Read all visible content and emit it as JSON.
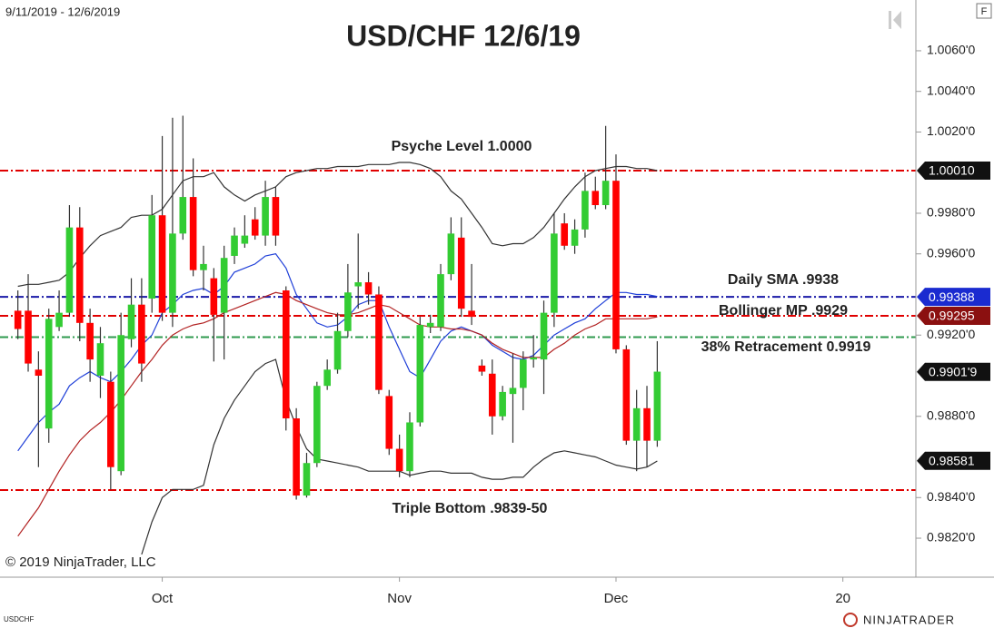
{
  "chart_data": {
    "type": "candlestick",
    "title": "USD/CHF 12/6/19",
    "date_range": "9/11/2019 - 12/6/2019",
    "symbol": "USDCHF",
    "copyright": "© 2019 NinjaTrader, LLC",
    "brand": "NINJATRADER",
    "button": "F",
    "up_color": "#33cc33",
    "down_color": "#ff0000",
    "categories": [
      null,
      null,
      null,
      null,
      null,
      null,
      null,
      null,
      null,
      null,
      null,
      null,
      null,
      null,
      "Oct",
      null,
      null,
      null,
      null,
      null,
      null,
      null,
      null,
      null,
      null,
      null,
      null,
      null,
      null,
      null,
      null,
      null,
      null,
      null,
      null,
      null,
      null,
      "Nov",
      null,
      null,
      null,
      null,
      null,
      null,
      null,
      null,
      null,
      null,
      null,
      null,
      null,
      null,
      null,
      null,
      null,
      null,
      null,
      null,
      "Dec",
      null,
      null,
      null,
      null,
      null,
      null,
      null,
      null,
      null,
      null,
      null,
      null,
      null,
      null,
      null,
      null,
      null,
      null,
      null,
      null,
      null,
      "20",
      null,
      null,
      null,
      null,
      null,
      null,
      null
    ],
    "open": [
      0.9932,
      0.9932,
      0.9903,
      0.9874,
      0.9924,
      0.9931,
      0.9973,
      0.9926,
      0.99,
      0.9897,
      0.9853,
      0.9918,
      0.9935,
      0.9938,
      0.9979,
      0.9931,
      0.997,
      0.9988,
      0.9952,
      0.9948,
      0.9931,
      0.9959,
      0.9965,
      0.9977,
      0.9969,
      0.9988,
      0.9942,
      0.9879,
      0.9841,
      0.9857,
      0.9895,
      0.9903,
      0.9922,
      0.9944,
      0.9946,
      0.994,
      0.989,
      0.9864,
      0.9853,
      0.9877,
      0.9924,
      0.9924,
      0.995,
      0.9968,
      0.9932,
      0.9905,
      0.9901,
      0.988,
      0.9891,
      0.9894,
      0.9908,
      0.9908,
      0.9931,
      0.9975,
      0.9964,
      0.9972,
      0.9991,
      0.9984,
      0.9996,
      0.9913,
      0.9868,
      0.9884,
      0.9868,
      null,
      null,
      null,
      null,
      null,
      null,
      null,
      null,
      null,
      null,
      null,
      null,
      null,
      null,
      null,
      null,
      null,
      null,
      null,
      null,
      null,
      null,
      null,
      null,
      null
    ],
    "high": [
      0.9942,
      0.995,
      0.9912,
      0.9933,
      0.9942,
      0.9984,
      0.9983,
      0.9933,
      0.9924,
      0.9902,
      0.9931,
      0.9948,
      0.9948,
      0.9989,
      1.0018,
      1.0027,
      1.0028,
      1.0007,
      0.9964,
      0.9953,
      0.9964,
      0.9973,
      0.9979,
      0.9983,
      0.9996,
      0.9993,
      0.9944,
      0.9884,
      0.9862,
      0.9897,
      0.9908,
      0.9931,
      0.9955,
      0.997,
      0.9951,
      0.9944,
      0.9893,
      0.9871,
      0.9882,
      0.9929,
      0.993,
      0.9955,
      0.9978,
      0.9978,
      0.9955,
      0.9908,
      0.9908,
      0.9895,
      0.9911,
      0.9912,
      0.992,
      0.9937,
      0.998,
      0.998,
      0.9977,
      1.0,
      0.9998,
      1.0023,
      1.0009,
      0.9915,
      0.9893,
      0.9895,
      0.9917,
      null,
      null,
      null,
      null,
      null,
      null,
      null,
      null,
      null,
      null,
      null,
      null,
      null,
      null,
      null,
      null,
      null,
      null,
      null,
      null,
      null,
      null,
      null,
      null,
      null
    ],
    "low": [
      0.9918,
      0.9902,
      0.9855,
      0.9867,
      0.9922,
      0.9929,
      0.9917,
      0.9897,
      0.9889,
      0.9844,
      0.9851,
      0.9914,
      0.9897,
      0.9931,
      0.9927,
      0.9924,
      0.9967,
      0.9949,
      0.9942,
      0.9907,
      0.9908,
      0.9955,
      0.9963,
      0.9967,
      0.9964,
      0.9964,
      0.9873,
      0.9839,
      0.984,
      0.9855,
      0.9893,
      0.9901,
      0.9919,
      0.9933,
      0.9935,
      0.9891,
      0.9861,
      0.985,
      0.985,
      0.9875,
      0.9921,
      0.9922,
      0.9947,
      0.9929,
      0.9925,
      0.99,
      0.9871,
      0.9878,
      0.9867,
      0.9883,
      0.9904,
      0.9891,
      0.9924,
      0.9962,
      0.996,
      0.9968,
      0.9982,
      0.9982,
      0.9911,
      0.9866,
      0.9853,
      0.9855,
      0.9865,
      null,
      null,
      null,
      null,
      null,
      null,
      null,
      null,
      null,
      null,
      null,
      null,
      null,
      null,
      null,
      null,
      null,
      null,
      null,
      null,
      null,
      null,
      null,
      null,
      null
    ],
    "close": [
      0.9923,
      0.9906,
      0.99,
      0.9928,
      0.9931,
      0.9973,
      0.9926,
      0.9908,
      0.9916,
      0.9855,
      0.992,
      0.9935,
      0.9906,
      0.9979,
      0.9931,
      0.997,
      0.9988,
      0.9952,
      0.9955,
      0.993,
      0.9958,
      0.9969,
      0.9969,
      0.9969,
      0.9988,
      0.9969,
      0.9879,
      0.9841,
      0.9857,
      0.9895,
      0.9903,
      0.9922,
      0.9941,
      0.9946,
      0.994,
      0.9893,
      0.9864,
      0.9853,
      0.9877,
      0.9925,
      0.9926,
      0.995,
      0.997,
      0.9933,
      0.9929,
      0.9902,
      0.988,
      0.9892,
      0.9894,
      0.9908,
      0.9909,
      0.9931,
      0.997,
      0.9964,
      0.9972,
      0.9991,
      0.9984,
      0.9996,
      0.9913,
      0.9868,
      0.9884,
      0.9868,
      0.9902,
      null,
      null,
      null,
      null,
      null,
      null,
      null,
      null,
      null,
      null,
      null,
      null,
      null,
      null,
      null,
      null,
      null,
      null,
      null,
      null,
      null,
      null,
      null,
      null,
      null
    ],
    "indicators": [
      {
        "color": "#333333",
        "values": [
          0.9944,
          0.9945,
          0.9945,
          0.9946,
          0.9947,
          0.9951,
          0.9958,
          0.9964,
          0.9969,
          0.9971,
          0.9973,
          0.9978,
          0.9979,
          0.9979,
          0.9982,
          0.9989,
          0.9996,
          0.9998,
          0.9998,
          1.0,
          0.9993,
          0.9989,
          0.9986,
          0.9989,
          0.9991,
          0.9993,
          0.9998,
          1.0,
          1.0001,
          1.0002,
          1.0002,
          1.0003,
          1.0003,
          1.0003,
          1.0004,
          1.0004,
          1.0004,
          1.0005,
          1.0005,
          1.0004,
          1.0002,
          0.9998,
          0.9991,
          0.9987,
          0.998,
          0.9973,
          0.9965,
          0.9964,
          0.9965,
          0.9965,
          0.9968,
          0.9973,
          0.998,
          0.9987,
          0.9993,
          0.9998,
          1.0001,
          1.0002,
          1.0003,
          1.0003,
          1.0002,
          1.0002,
          1.0001,
          null,
          null,
          null,
          null,
          null,
          null,
          null,
          null,
          null,
          null,
          null,
          null,
          null,
          null,
          null,
          null,
          null,
          null,
          null,
          null,
          null,
          null,
          null,
          null,
          null
        ]
      },
      {
        "color": "#333333",
        "values": [
          null,
          null,
          null,
          null,
          null,
          null,
          null,
          null,
          null,
          null,
          null,
          null,
          0.9812,
          0.9828,
          0.984,
          0.9844,
          0.9844,
          0.9844,
          0.9846,
          0.9866,
          0.9879,
          0.9888,
          0.9895,
          0.9902,
          0.9906,
          0.9908,
          0.9888,
          0.9875,
          0.9864,
          0.9859,
          0.9858,
          0.9857,
          0.9856,
          0.9855,
          0.9853,
          0.9853,
          0.9853,
          0.9853,
          0.9851,
          0.9852,
          0.9853,
          0.9853,
          0.9852,
          0.9852,
          0.9852,
          0.985,
          0.9849,
          0.9849,
          0.985,
          0.985,
          0.9855,
          0.9859,
          0.9862,
          0.9863,
          0.9862,
          0.9861,
          0.986,
          0.9858,
          0.9856,
          0.9855,
          0.9854,
          0.9855,
          0.9858,
          null,
          null,
          null,
          null,
          null,
          null,
          null,
          null,
          null,
          null,
          null,
          null,
          null,
          null,
          null,
          null,
          null,
          null,
          null,
          null,
          null,
          null,
          null,
          null,
          null
        ]
      },
      {
        "color": "#1f3fd8",
        "values": [
          0.9863,
          0.987,
          0.9877,
          0.9882,
          0.9886,
          0.9895,
          0.9899,
          0.9902,
          0.9899,
          0.9897,
          0.9902,
          0.9908,
          0.9915,
          0.992,
          0.9931,
          0.9935,
          0.994,
          0.9942,
          0.9943,
          0.994,
          0.9944,
          0.9951,
          0.9953,
          0.9955,
          0.9959,
          0.996,
          0.9953,
          0.994,
          0.9933,
          0.9926,
          0.9924,
          0.9925,
          0.9929,
          0.9935,
          0.9937,
          0.9937,
          0.9924,
          0.9913,
          0.9902,
          0.9899,
          0.9908,
          0.9917,
          0.9922,
          0.9924,
          0.9922,
          0.992,
          0.9915,
          0.9912,
          0.9909,
          0.9908,
          0.991,
          0.9915,
          0.992,
          0.9923,
          0.9926,
          0.9928,
          0.9933,
          0.9937,
          0.9941,
          0.9941,
          0.994,
          0.994,
          0.9939,
          null,
          null,
          null,
          null,
          null,
          null,
          null,
          null,
          null,
          null,
          null,
          null,
          null,
          null,
          null,
          null,
          null,
          null,
          null,
          null,
          null,
          null,
          null,
          null,
          null
        ]
      },
      {
        "color": "#b22222",
        "values": [
          0.9821,
          0.9828,
          0.9835,
          0.9844,
          0.9853,
          0.9861,
          0.9868,
          0.9873,
          0.9877,
          0.9882,
          0.9888,
          0.9895,
          0.9902,
          0.9908,
          0.9915,
          0.992,
          0.9923,
          0.9925,
          0.9926,
          0.9928,
          0.9931,
          0.9933,
          0.9935,
          0.9937,
          0.9939,
          0.9941,
          0.994,
          0.9937,
          0.9935,
          0.9933,
          0.9931,
          0.993,
          0.993,
          0.9931,
          0.9933,
          0.9935,
          0.9934,
          0.9931,
          0.9928,
          0.9925,
          0.9924,
          0.9924,
          0.9923,
          0.9923,
          0.9922,
          0.992,
          0.9916,
          0.9913,
          0.9911,
          0.9909,
          0.9909,
          0.9909,
          0.9913,
          0.9916,
          0.992,
          0.9923,
          0.9925,
          0.9928,
          0.9928,
          0.9928,
          0.9928,
          0.9928,
          0.9929,
          null,
          null,
          null,
          null,
          null,
          null,
          null,
          null,
          null,
          null,
          null,
          null,
          null,
          null,
          null,
          null,
          null,
          null,
          null,
          null,
          null,
          null,
          null,
          null,
          null
        ]
      }
    ],
    "levels": [
      {
        "value": 1.0001,
        "color": "#e00000"
      },
      {
        "value": 0.99388,
        "color": "#1a1aa8"
      },
      {
        "value": 0.99295,
        "color": "#e00000"
      },
      {
        "value": 0.9919,
        "color": "#2e9a4e"
      },
      {
        "value": 0.98437,
        "color": "#e00000"
      }
    ],
    "annotations": [
      "Psyche Level 1.0000",
      "Daily SMA .9938",
      "Bollinger MP .9929",
      "38% Retracement 0.9919",
      "Triple Bottom .9839-50"
    ],
    "price_markers": [
      {
        "value": 1.0001,
        "label": "1.00010",
        "color": "#111111"
      },
      {
        "value": 0.99388,
        "label": "0.99388",
        "color": "#1a2bd0"
      },
      {
        "value": 0.99295,
        "label": "0.99295",
        "color": "#8b1010"
      },
      {
        "value": 0.99019,
        "label": "0.9901'9",
        "color": "#111111"
      },
      {
        "value": 0.98581,
        "label": "0.98581",
        "color": "#111111"
      }
    ],
    "ylim": [
      0.98008,
      1.0085
    ],
    "yticks": [
      {
        "value": 1.006,
        "label": "1.0060'0"
      },
      {
        "value": 1.004,
        "label": "1.0040'0"
      },
      {
        "value": 1.002,
        "label": "1.0020'0"
      },
      {
        "value": 0.998,
        "label": "0.9980'0"
      },
      {
        "value": 0.996,
        "label": "0.9960'0"
      },
      {
        "value": 0.992,
        "label": "0.9920'0"
      },
      {
        "value": 0.988,
        "label": "0.9880'0"
      },
      {
        "value": 0.984,
        "label": "0.9840'0"
      },
      {
        "value": 0.982,
        "label": "0.9820'0"
      }
    ]
  }
}
